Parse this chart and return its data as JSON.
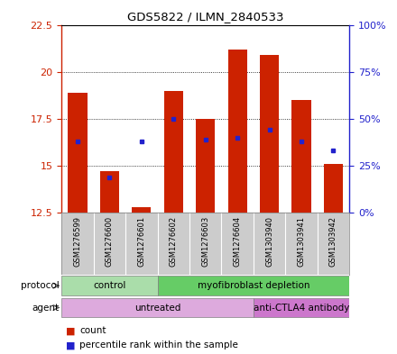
{
  "title": "GDS5822 / ILMN_2840533",
  "samples": [
    "GSM1276599",
    "GSM1276600",
    "GSM1276601",
    "GSM1276602",
    "GSM1276603",
    "GSM1276604",
    "GSM1303940",
    "GSM1303941",
    "GSM1303942"
  ],
  "count_values": [
    18.9,
    14.7,
    12.8,
    19.0,
    17.5,
    21.2,
    20.9,
    18.5,
    15.1
  ],
  "count_base": 12.5,
  "percentile_left_values": [
    16.3,
    14.4,
    16.3,
    17.5,
    16.4,
    16.5,
    16.9,
    16.3,
    15.8
  ],
  "ylim_left": [
    12.5,
    22.5
  ],
  "ylim_right": [
    0,
    100
  ],
  "yticks_left": [
    12.5,
    15.0,
    17.5,
    20.0,
    22.5
  ],
  "yticks_right": [
    0,
    25,
    50,
    75,
    100
  ],
  "ytick_labels_left": [
    "12.5",
    "15",
    "17.5",
    "20",
    "22.5"
  ],
  "ytick_labels_right": [
    "0%",
    "25%",
    "50%",
    "75%",
    "100%"
  ],
  "bar_color": "#cc2200",
  "percentile_color": "#2222cc",
  "protocol_groups": [
    {
      "label": "control",
      "start": 0,
      "end": 3,
      "color": "#aaddaa"
    },
    {
      "label": "myofibroblast depletion",
      "start": 3,
      "end": 9,
      "color": "#66cc66"
    }
  ],
  "agent_groups": [
    {
      "label": "untreated",
      "start": 0,
      "end": 6,
      "color": "#ddaadd"
    },
    {
      "label": "anti-CTLA4 antibody",
      "start": 6,
      "end": 9,
      "color": "#cc77cc"
    }
  ],
  "left_axis_color": "#cc2200",
  "right_axis_color": "#2222cc",
  "legend_count_label": "count",
  "legend_pct_label": "percentile rank within the sample",
  "protocol_label": "protocol",
  "agent_label": "agent"
}
